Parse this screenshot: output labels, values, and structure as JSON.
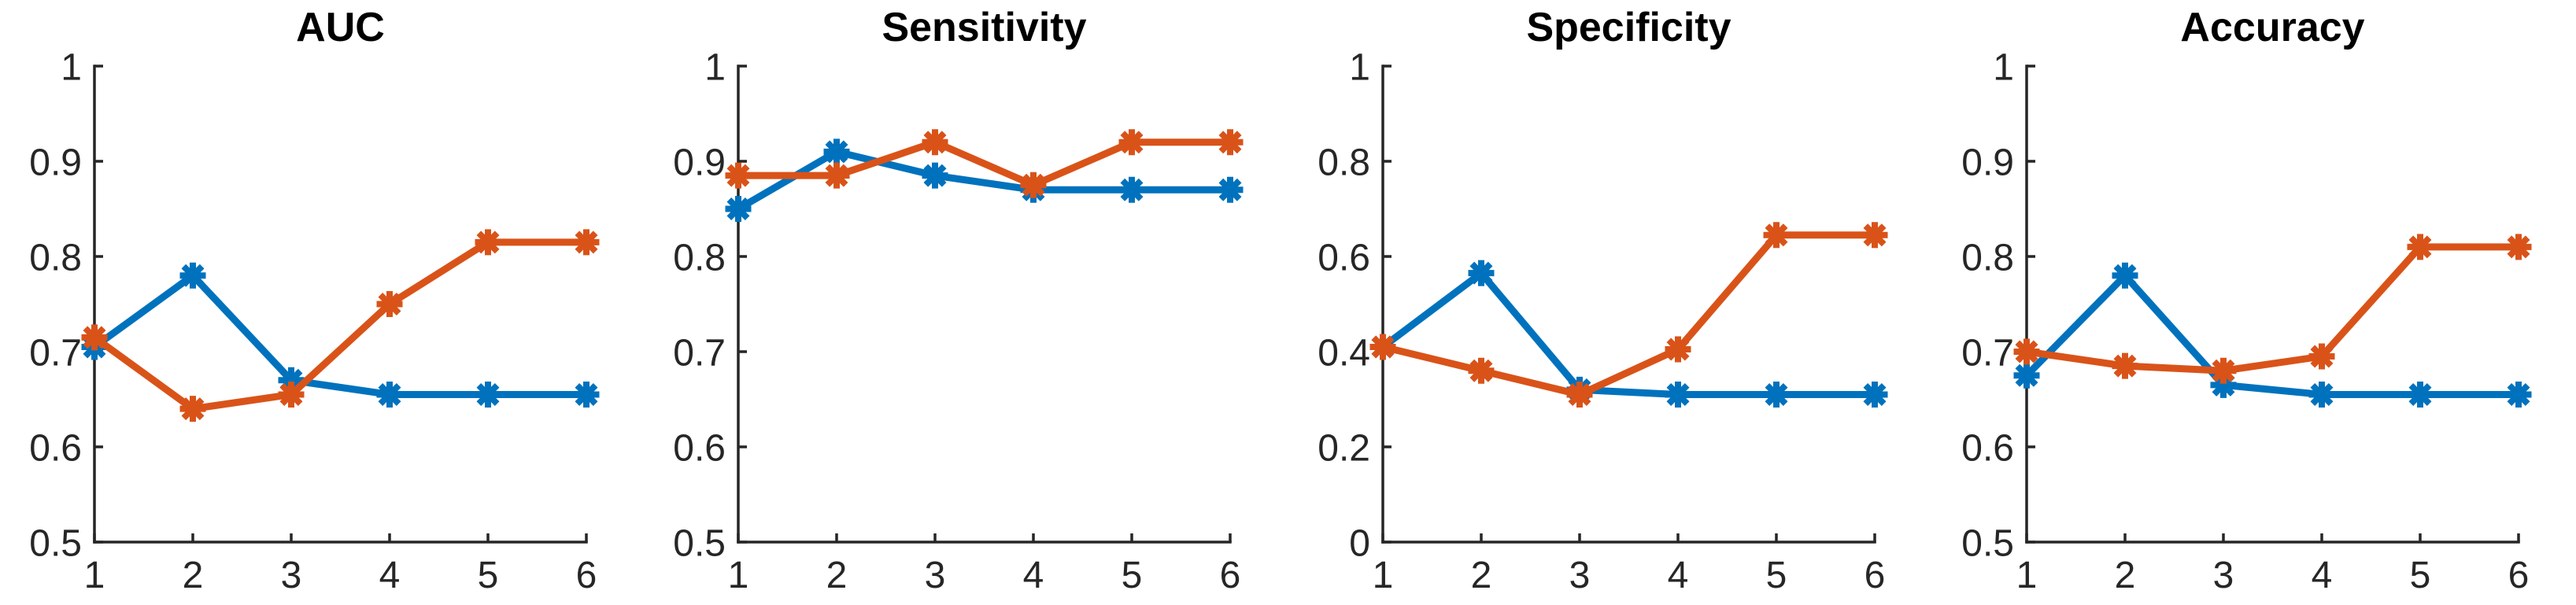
{
  "figure": {
    "background": "#ffffff",
    "axis_color": "#262626",
    "title_color": "#000000",
    "series_colors": [
      "#0072BD",
      "#D95319"
    ],
    "marker_style": "asterisk-icon"
  },
  "chart_data": [
    {
      "type": "line",
      "title": "AUC",
      "x": [
        1,
        2,
        3,
        4,
        5,
        6
      ],
      "xticks": [
        "1",
        "2",
        "3",
        "4",
        "5",
        "6"
      ],
      "xlim": [
        1,
        6
      ],
      "ylim": [
        0.5,
        1
      ],
      "yticks": [
        0.5,
        0.6,
        0.7,
        0.8,
        0.9,
        1
      ],
      "yticklabels": [
        "0.5",
        "0.6",
        "0.7",
        "0.8",
        "0.9",
        "1"
      ],
      "grid": false,
      "legend": null,
      "series": [
        {
          "name": "blue-series",
          "color": "#0072BD",
          "values": [
            0.705,
            0.78,
            0.67,
            0.655,
            0.655,
            0.655
          ]
        },
        {
          "name": "orange-series",
          "color": "#D95319",
          "values": [
            0.715,
            0.64,
            0.655,
            0.75,
            0.815,
            0.815
          ]
        }
      ]
    },
    {
      "type": "line",
      "title": "Sensitivity",
      "x": [
        1,
        2,
        3,
        4,
        5,
        6
      ],
      "xticks": [
        "1",
        "2",
        "3",
        "4",
        "5",
        "6"
      ],
      "xlim": [
        1,
        6
      ],
      "ylim": [
        0.5,
        1
      ],
      "yticks": [
        0.5,
        0.6,
        0.7,
        0.8,
        0.9,
        1
      ],
      "yticklabels": [
        "0.5",
        "0.6",
        "0.7",
        "0.8",
        "0.9",
        "1"
      ],
      "grid": false,
      "legend": null,
      "series": [
        {
          "name": "blue-series",
          "color": "#0072BD",
          "values": [
            0.85,
            0.91,
            0.885,
            0.87,
            0.87,
            0.87
          ]
        },
        {
          "name": "orange-series",
          "color": "#D95319",
          "values": [
            0.885,
            0.885,
            0.92,
            0.875,
            0.92,
            0.92
          ]
        }
      ]
    },
    {
      "type": "line",
      "title": "Specificity",
      "x": [
        1,
        2,
        3,
        4,
        5,
        6
      ],
      "xticks": [
        "1",
        "2",
        "3",
        "4",
        "5",
        "6"
      ],
      "xlim": [
        1,
        6
      ],
      "ylim": [
        0,
        1
      ],
      "yticks": [
        0,
        0.2,
        0.4,
        0.6,
        0.8,
        1
      ],
      "yticklabels": [
        "0",
        "0.2",
        "0.4",
        "0.6",
        "0.8",
        "1"
      ],
      "grid": false,
      "legend": null,
      "series": [
        {
          "name": "blue-series",
          "color": "#0072BD",
          "values": [
            0.41,
            0.565,
            0.32,
            0.31,
            0.31,
            0.31
          ]
        },
        {
          "name": "orange-series",
          "color": "#D95319",
          "values": [
            0.41,
            0.36,
            0.31,
            0.405,
            0.645,
            0.645
          ]
        }
      ]
    },
    {
      "type": "line",
      "title": "Accuracy",
      "x": [
        1,
        2,
        3,
        4,
        5,
        6
      ],
      "xticks": [
        "1",
        "2",
        "3",
        "4",
        "5",
        "6"
      ],
      "xlim": [
        1,
        6
      ],
      "ylim": [
        0.5,
        1
      ],
      "yticks": [
        0.5,
        0.6,
        0.7,
        0.8,
        0.9,
        1
      ],
      "yticklabels": [
        "0.5",
        "0.6",
        "0.7",
        "0.8",
        "0.9",
        "1"
      ],
      "grid": false,
      "legend": null,
      "series": [
        {
          "name": "blue-series",
          "color": "#0072BD",
          "values": [
            0.675,
            0.78,
            0.665,
            0.655,
            0.655,
            0.655
          ]
        },
        {
          "name": "orange-series",
          "color": "#D95319",
          "values": [
            0.7,
            0.685,
            0.68,
            0.695,
            0.81,
            0.81
          ]
        }
      ]
    }
  ]
}
